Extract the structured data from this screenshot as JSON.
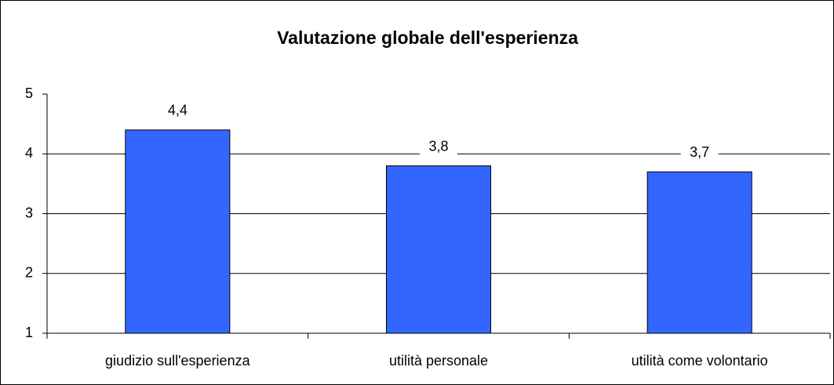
{
  "chart_data": {
    "type": "bar",
    "title": "Valutazione globale dell'esperienza",
    "categories": [
      "giudizio sull'esperienza",
      "utilità personale",
      "utilità come volontario"
    ],
    "values": [
      4.4,
      3.8,
      3.7
    ],
    "value_labels": [
      "4,4",
      "3,8",
      "3,7"
    ],
    "color": "#3366ff",
    "ylim": [
      1,
      5
    ],
    "yticks": [
      1,
      2,
      3,
      4,
      5
    ],
    "grid": true
  }
}
